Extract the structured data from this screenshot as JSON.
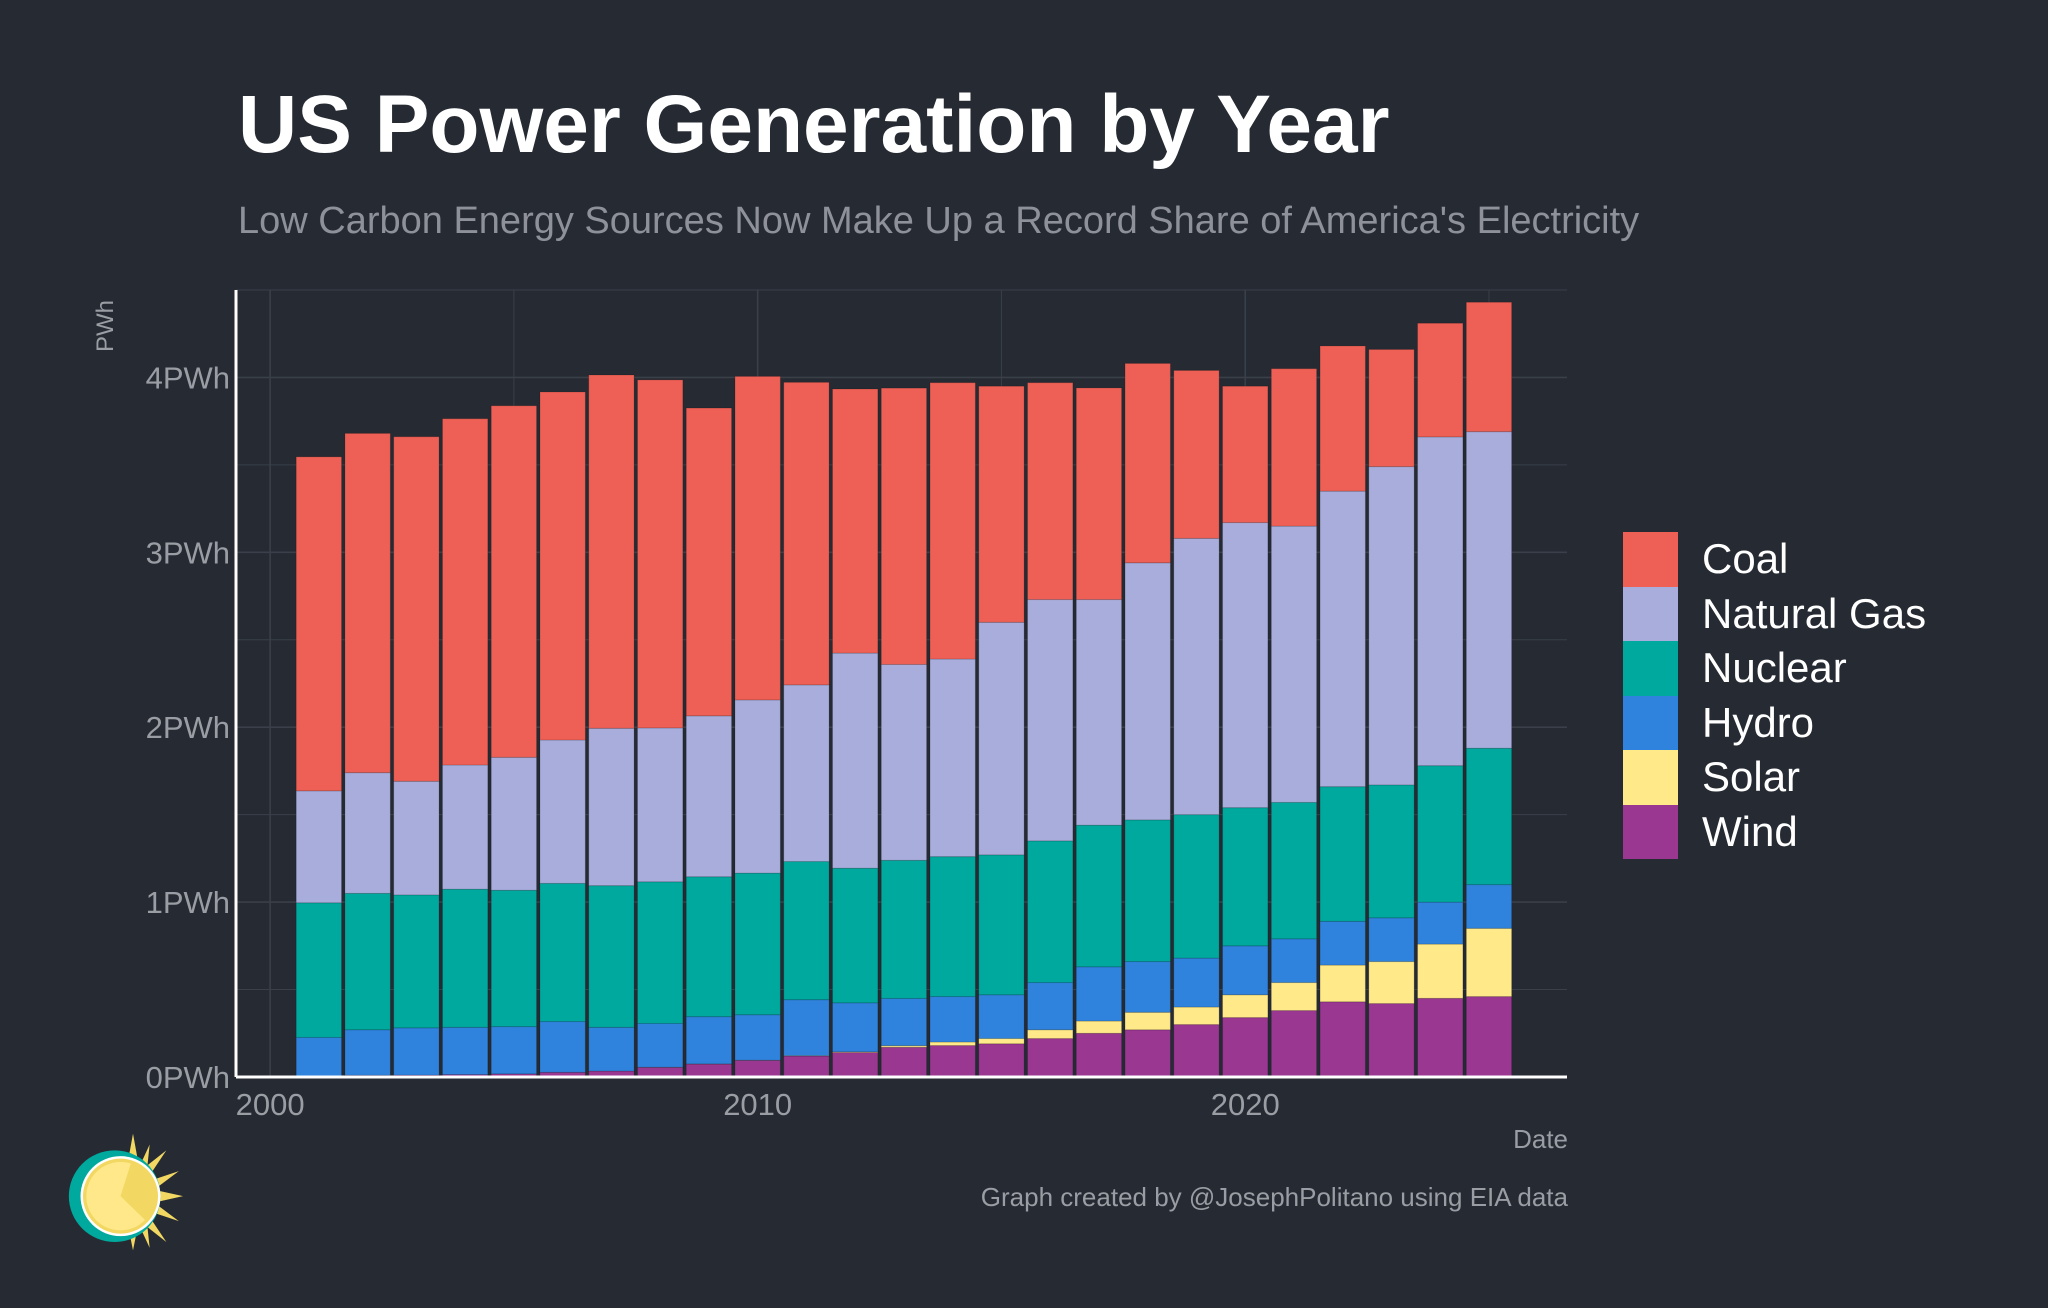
{
  "title": "US Power Generation by Year",
  "subtitle": "Low Carbon Energy Sources Now Make Up a Record Share of America's Electricity",
  "footer": "Graph created by @JosephPolitano using EIA data",
  "chart_data": {
    "type": "bar",
    "stacked": true,
    "xlabel": "Date",
    "ylabel": "PWh",
    "xlim": [
      1999.3,
      2026.6
    ],
    "ylim": [
      0,
      4.5
    ],
    "x_ticks": [
      2000,
      2010,
      2020
    ],
    "x_tick_labels": [
      "2000",
      "2010",
      "2020"
    ],
    "y_ticks": [
      0,
      1,
      2,
      3,
      4
    ],
    "y_tick_labels": [
      "0PWh",
      "1PWh",
      "2PWh",
      "3PWh",
      "4PWh"
    ],
    "grid": true,
    "legend_position": "right",
    "x": [
      2001,
      2002,
      2003,
      2004,
      2005,
      2006,
      2007,
      2008,
      2009,
      2010,
      2011,
      2012,
      2013,
      2014,
      2015,
      2016,
      2017,
      2018,
      2019,
      2020,
      2021,
      2022,
      2023,
      2024,
      2025
    ],
    "series": [
      {
        "name": "Wind",
        "color": "#993791",
        "values": [
          0.006,
          0.01,
          0.011,
          0.014,
          0.018,
          0.027,
          0.034,
          0.055,
          0.074,
          0.095,
          0.12,
          0.14,
          0.17,
          0.18,
          0.19,
          0.22,
          0.25,
          0.27,
          0.3,
          0.34,
          0.38,
          0.43,
          0.42,
          0.45,
          0.46
        ]
      },
      {
        "name": "Solar",
        "color": "#ffe989",
        "values": [
          0,
          0,
          0,
          0,
          0,
          0,
          0,
          0.001,
          0.001,
          0.001,
          0.002,
          0.004,
          0.009,
          0.02,
          0.03,
          0.05,
          0.07,
          0.1,
          0.1,
          0.13,
          0.16,
          0.21,
          0.24,
          0.31,
          0.39
        ]
      },
      {
        "name": "Hydro",
        "color": "#3083dc",
        "values": [
          0.22,
          0.26,
          0.27,
          0.27,
          0.27,
          0.29,
          0.25,
          0.25,
          0.27,
          0.26,
          0.32,
          0.28,
          0.27,
          0.26,
          0.25,
          0.27,
          0.31,
          0.29,
          0.28,
          0.28,
          0.25,
          0.25,
          0.25,
          0.24,
          0.25
        ]
      },
      {
        "name": "Nuclear",
        "color": "#00a99d",
        "values": [
          0.77,
          0.78,
          0.76,
          0.79,
          0.78,
          0.79,
          0.81,
          0.81,
          0.8,
          0.81,
          0.79,
          0.77,
          0.79,
          0.8,
          0.8,
          0.81,
          0.81,
          0.81,
          0.82,
          0.79,
          0.78,
          0.77,
          0.76,
          0.78,
          0.78
        ]
      },
      {
        "name": "Natural Gas",
        "color": "#a8addb",
        "values": [
          0.64,
          0.69,
          0.65,
          0.71,
          0.76,
          0.82,
          0.9,
          0.88,
          0.92,
          0.99,
          1.01,
          1.23,
          1.12,
          1.13,
          1.33,
          1.38,
          1.29,
          1.47,
          1.58,
          1.63,
          1.58,
          1.69,
          1.82,
          1.88,
          1.81
        ]
      },
      {
        "name": "Coal",
        "color": "#ee6055",
        "values": [
          1.91,
          1.94,
          1.97,
          1.98,
          2.01,
          1.99,
          2.02,
          1.99,
          1.76,
          1.85,
          1.73,
          1.51,
          1.58,
          1.58,
          1.35,
          1.24,
          1.21,
          1.14,
          0.96,
          0.78,
          0.9,
          0.83,
          0.67,
          0.65,
          0.74
        ]
      }
    ],
    "legend_order": [
      "Coal",
      "Natural Gas",
      "Nuclear",
      "Hydro",
      "Solar",
      "Wind"
    ]
  },
  "colors": {
    "background": "#252a33",
    "grid": "#3a3f48",
    "axis": "#ffffff",
    "tick_text": "#9a9da3"
  },
  "logo": {
    "icon": "sun-clock-icon"
  }
}
